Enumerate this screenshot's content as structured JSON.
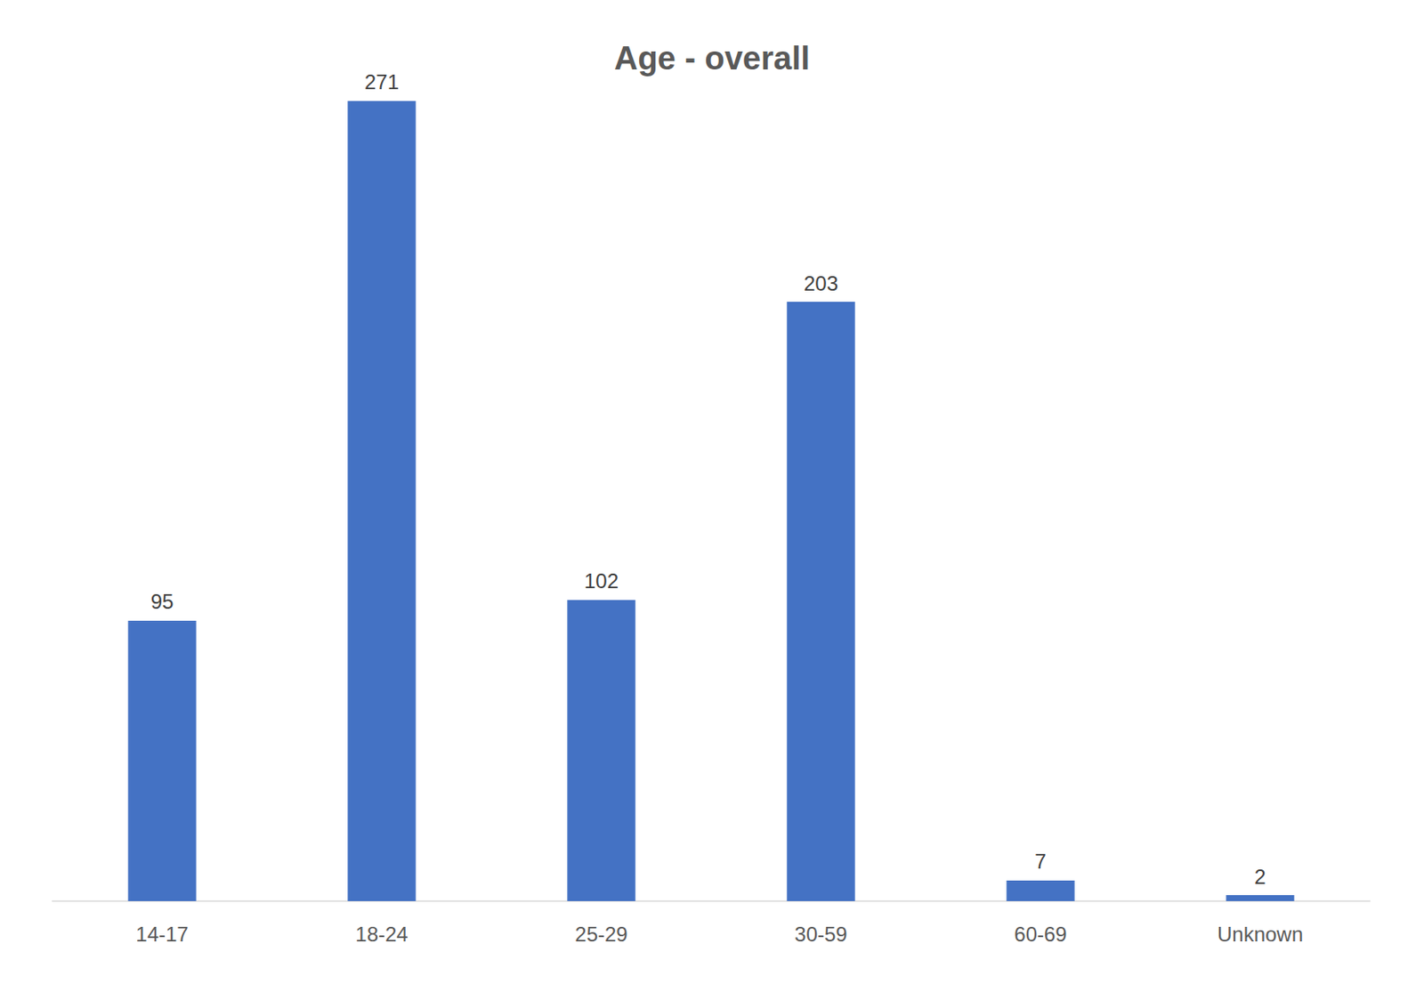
{
  "chart_data": {
    "type": "bar",
    "title": "Age - overall",
    "categories": [
      "14-17",
      "18-24",
      "25-29",
      "30-59",
      "60-69",
      "Unknown"
    ],
    "values": [
      95,
      271,
      102,
      203,
      7,
      2
    ],
    "color": "#4472c4",
    "ylim": [
      0,
      300
    ],
    "grid": false,
    "data_labels": true,
    "tick_labels": "x"
  }
}
